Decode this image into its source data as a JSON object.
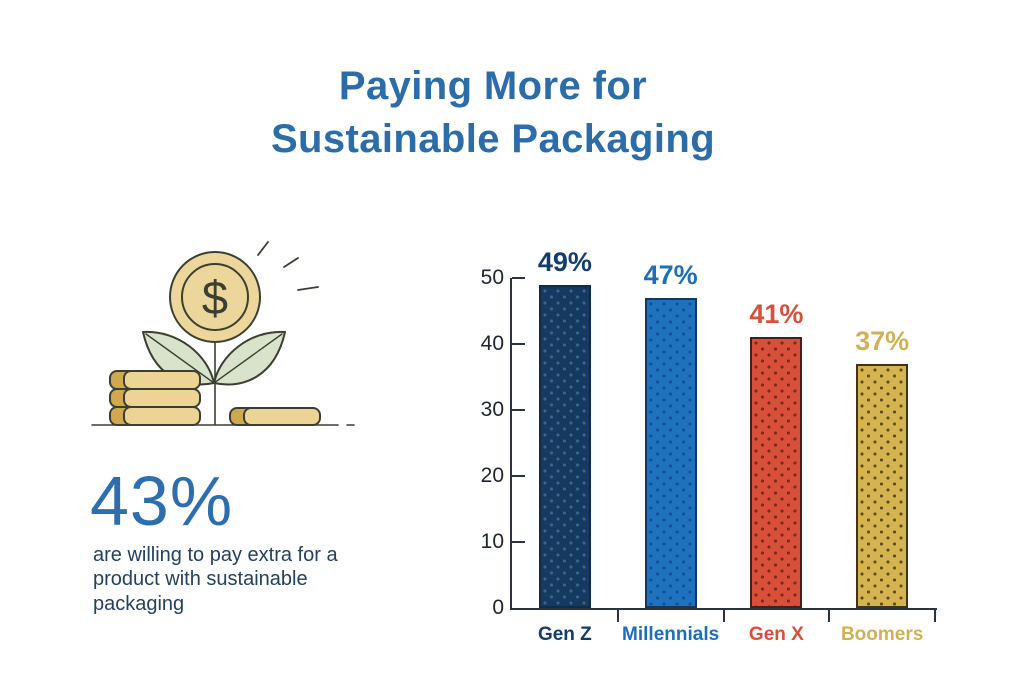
{
  "title": {
    "line1": "Paying More for",
    "line2": "Sustainable Packaging",
    "color": "#2b6ca9"
  },
  "stat": {
    "value": "43%",
    "description": "are willing to pay extra for a product with sustainable packaging",
    "value_color": "#2d6fae",
    "description_color": "#24415e"
  },
  "illustration": {
    "name": "money-plant",
    "dollar_sign": "$",
    "outline": "#3a3f31",
    "coin_fill": "#ecd69b",
    "coin_body_fill": "#ecd494",
    "coin_cap_fill": "#cfa850",
    "leaf_fill": "#d9e2cb"
  },
  "chart_data": {
    "type": "bar",
    "title": "Paying More for Sustainable Packaging",
    "categories": [
      "Gen Z",
      "Millennials",
      "Gen X",
      "Boomers"
    ],
    "values": [
      49,
      47,
      41,
      37
    ],
    "value_labels": [
      "49%",
      "47%",
      "41%",
      "37%"
    ],
    "xlabel": "",
    "ylabel": "",
    "ylim": [
      0,
      50
    ],
    "yticks": [
      0,
      10,
      20,
      30,
      40,
      50
    ],
    "grid": false,
    "legend": false,
    "bar_texture": "dotted",
    "axis_color": "#2a3340",
    "tick_label_color": "#1d2630",
    "series_colors": [
      {
        "category": "Gen Z",
        "fill": "#15395f",
        "dot": "#3e6190",
        "border": "#0f2c4d",
        "label": "#123e6d"
      },
      {
        "category": "Millennials",
        "fill": "#1e71bd",
        "dot": "#0f5194",
        "border": "#16375c",
        "label": "#1d70b8"
      },
      {
        "category": "Gen X",
        "fill": "#d8503a",
        "dot": "#7c2a1b",
        "border": "#432019",
        "label": "#d8503a"
      },
      {
        "category": "Boomers",
        "fill": "#d5b44f",
        "dot": "#5f4f18",
        "border": "#3f3415",
        "label": "#d2b156"
      }
    ]
  }
}
